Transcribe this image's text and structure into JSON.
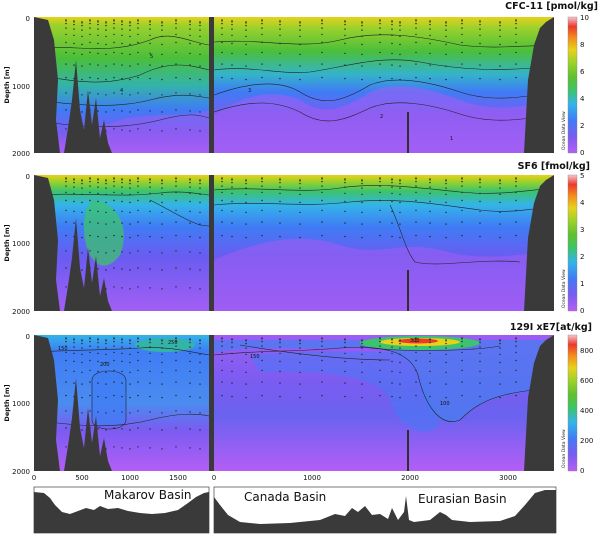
{
  "chart_data": [
    {
      "type": "heatmap",
      "title": "CFC-11 [pmol/kg]",
      "ylabel": "Depth [m]",
      "ylim": [
        2000,
        0
      ],
      "y_ticks": [
        "0",
        "1000",
        "2000"
      ],
      "colorbar": {
        "range": [
          0,
          10
        ],
        "ticks": [
          "0",
          "2",
          "4",
          "6",
          "8",
          "10"
        ]
      },
      "contour_labels": [
        "5",
        "4",
        "3",
        "2",
        "1"
      ],
      "watermark": "Ocean Data View"
    },
    {
      "type": "heatmap",
      "title": "SF6 [fmol/kg]",
      "ylabel": "Depth [m]",
      "ylim": [
        2000,
        0
      ],
      "y_ticks": [
        "0",
        "1000",
        "2000"
      ],
      "colorbar": {
        "range": [
          0,
          5
        ],
        "ticks": [
          "0",
          "1",
          "2",
          "3",
          "4",
          "5"
        ]
      },
      "watermark": "Ocean Data View"
    },
    {
      "type": "heatmap",
      "title": "129I xE7[at/kg]",
      "ylabel": "Depth [m]",
      "ylim": [
        2000,
        0
      ],
      "y_ticks": [
        "0",
        "1000",
        "2000"
      ],
      "x_ticks_left": [
        "0",
        "500",
        "1000",
        "1500"
      ],
      "x_ticks_right": [
        "0",
        "1000",
        "2000",
        "3000"
      ],
      "colorbar": {
        "range": [
          0,
          900
        ],
        "ticks": [
          "0",
          "200",
          "400",
          "600",
          "800"
        ]
      },
      "contour_labels": [
        "150",
        "200",
        "250",
        "300",
        "100",
        "150"
      ],
      "watermark": "Ocean Data View"
    }
  ],
  "bathymetry": {
    "labels": [
      "Makarov Basin",
      "Canada Basin",
      "Eurasian Basin"
    ]
  },
  "colors": {
    "scale": [
      "#b45ef6",
      "#7a5cf1",
      "#3f7cf5",
      "#34b4e8",
      "#3cc36c",
      "#5fc02e",
      "#9bd12c",
      "#e8d11a",
      "#f28a1e",
      "#ea3a2c",
      "#f7c5cf"
    ],
    "terrain": "#3a3a3a"
  }
}
